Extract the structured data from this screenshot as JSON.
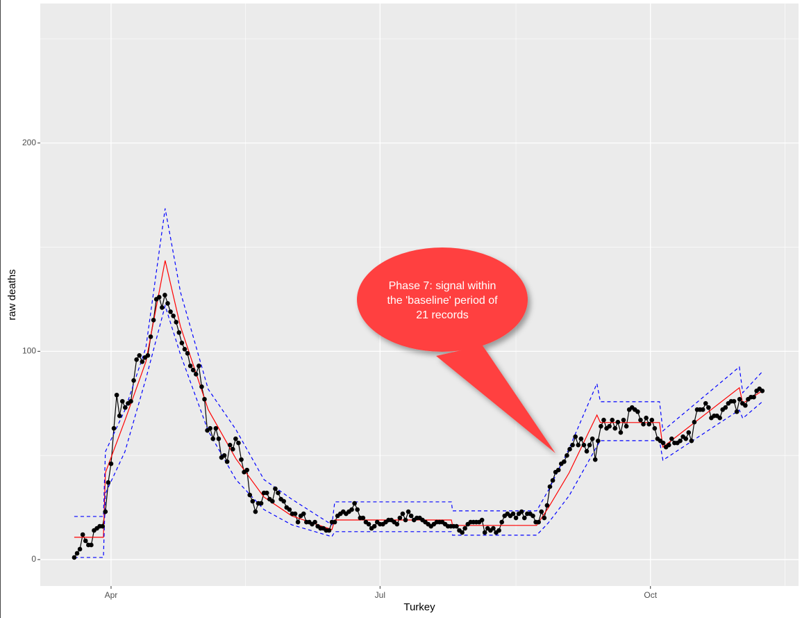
{
  "chart_data": {
    "type": "line",
    "x_label": "Turkey",
    "y_label": "raw deaths",
    "xlim": [
      -25.0,
      242.8
    ],
    "ylim": [
      -12.7,
      267
    ],
    "xticks": [
      {
        "value": 0,
        "label": "Apr"
      },
      {
        "value": 95,
        "label": "Jul"
      },
      {
        "value": 190.5,
        "label": "Oct"
      }
    ],
    "x_minor_ticks": [
      47.5,
      143,
      238
    ],
    "yticks": [
      0,
      100,
      200
    ],
    "y_minor_ticks": [
      50,
      150,
      250
    ],
    "grid": true,
    "annotation": [
      "Phase 7:  signal within",
      "the 'baseline' period of",
      "21 records"
    ],
    "series": [
      {
        "color": "#000000",
        "style": "points-line",
        "x": [
          -13,
          -12,
          -11,
          -10,
          -9,
          -8,
          -7,
          -6,
          -5,
          -4,
          -3,
          -2,
          -1,
          0,
          1,
          2,
          3,
          4,
          5,
          6,
          7,
          8,
          9,
          10,
          11,
          12,
          13,
          14,
          15,
          16,
          17,
          18,
          19,
          20,
          21,
          22,
          23,
          24,
          25,
          26,
          27,
          28,
          29,
          30,
          31,
          32,
          33,
          34,
          35,
          36,
          37,
          38,
          39,
          40,
          41,
          42,
          43,
          44,
          45,
          46,
          47,
          48,
          49,
          50,
          51,
          52,
          53,
          54,
          55,
          56,
          57,
          58,
          59,
          60,
          61,
          62,
          63,
          64,
          65,
          66,
          67,
          68,
          69,
          70,
          71,
          72,
          73,
          74,
          75,
          76,
          77,
          78,
          79,
          80,
          81,
          82,
          83,
          84,
          85,
          86,
          87,
          88,
          89,
          90,
          91,
          92,
          93,
          94,
          95,
          96,
          97,
          98,
          99,
          100,
          101,
          102,
          103,
          104,
          105,
          106,
          107,
          108,
          109,
          110,
          111,
          112,
          113,
          114,
          115,
          116,
          117,
          118,
          119,
          120,
          121,
          122,
          123,
          124,
          125,
          126,
          127,
          128,
          129,
          130,
          131,
          132,
          133,
          134,
          135,
          136,
          137,
          138,
          139,
          140,
          141,
          142,
          143,
          144,
          145,
          146,
          147,
          148,
          149,
          150,
          151,
          152,
          153,
          154,
          155,
          156,
          157,
          158,
          159,
          160,
          161,
          162,
          163,
          164,
          165,
          166,
          167,
          168,
          169,
          170,
          171,
          172,
          173,
          174,
          175,
          176,
          177,
          178,
          179,
          180,
          181,
          182,
          183,
          184,
          185,
          186,
          187,
          188,
          189,
          190,
          191,
          192,
          193,
          194,
          195,
          196,
          197,
          198,
          199,
          200,
          201,
          202,
          203,
          204,
          205,
          206,
          207,
          208,
          209,
          210,
          211,
          212,
          213,
          214,
          215,
          216,
          217,
          218,
          219,
          220,
          221,
          222,
          223,
          224,
          225,
          226,
          227,
          228,
          229,
          230
        ],
        "values": [
          1,
          3,
          5,
          12,
          9,
          7,
          7,
          14,
          15,
          16,
          16,
          23,
          37,
          46,
          63,
          79,
          69,
          76,
          73,
          75,
          76,
          86,
          96,
          98,
          95,
          97,
          98,
          107,
          115,
          125,
          126,
          121,
          127,
          123,
          119,
          117,
          114,
          109,
          104,
          101,
          99,
          93,
          91,
          89,
          93,
          83,
          77,
          62,
          63,
          58,
          63,
          58,
          49,
          50,
          47,
          55,
          53,
          58,
          56,
          48,
          42,
          43,
          31,
          28,
          23,
          27,
          27,
          32,
          32,
          29,
          28,
          34,
          32,
          29,
          28,
          25,
          24,
          22,
          22,
          18,
          21,
          22,
          18,
          18,
          17,
          18,
          16,
          15,
          15,
          14,
          14,
          18,
          18,
          21,
          22,
          23,
          22,
          23,
          24,
          27,
          24,
          20,
          20,
          18,
          17,
          15,
          16,
          18,
          17,
          17,
          18,
          19,
          19,
          18,
          17,
          20,
          22,
          19,
          23,
          21,
          19,
          20,
          20,
          19,
          18,
          17,
          16,
          17,
          18,
          18,
          18,
          17,
          16,
          16,
          16,
          16,
          14,
          13,
          15,
          17,
          18,
          18,
          18,
          18,
          19,
          13,
          15,
          14,
          15,
          13,
          14,
          18,
          21,
          22,
          21,
          22,
          20,
          22,
          23,
          20,
          22,
          22,
          21,
          18,
          18,
          23,
          20,
          26,
          35,
          38,
          42,
          43,
          46,
          47,
          50,
          53,
          55,
          59,
          55,
          58,
          55,
          52,
          55,
          58,
          48,
          57,
          64,
          67,
          63,
          64,
          67,
          63,
          66,
          61,
          67,
          64,
          72,
          73,
          72,
          71,
          67,
          65,
          68,
          65,
          67,
          63,
          58,
          57,
          56,
          54,
          55,
          58,
          56,
          56,
          57,
          59,
          58,
          61,
          57,
          66,
          72,
          72,
          72,
          75,
          73,
          68,
          69,
          69,
          68,
          72,
          73,
          75,
          76,
          76,
          71,
          77,
          75,
          74,
          77,
          78,
          78,
          81,
          82,
          81
        ]
      },
      {
        "color": "#ff0000",
        "style": "line",
        "x": [
          -13,
          -2.7,
          -2.0,
          4.9,
          12.3,
          19.1,
          24.5,
          34.3,
          44.1,
          54.0,
          63.8,
          78.0,
          79.0,
          120.2,
          120.6,
          150.3,
          154.5,
          161.8,
          171.6,
          172.8,
          193.7,
          194.9,
          221.9,
          223.1,
          230.0
        ],
        "values": [
          10.7,
          10.7,
          41.7,
          66.8,
          95,
          143.6,
          112,
          72,
          48.4,
          30,
          21,
          14.4,
          19,
          19,
          16.4,
          16.4,
          25,
          41.7,
          69.4,
          65.8,
          65.8,
          54,
          82.5,
          75,
          81
        ]
      },
      {
        "color": "#0000ff",
        "style": "dashed",
        "x": [
          -13,
          -2.7,
          -2.0,
          4.9,
          12.3,
          19.1,
          24.5,
          34.3,
          44.1,
          54.0,
          63.8,
          78.0,
          79.0,
          120.2,
          120.6,
          150.3,
          154.5,
          161.8,
          171.6,
          172.8,
          193.7,
          194.9,
          221.9,
          223.1,
          230.0
        ],
        "values": [
          20.7,
          20.7,
          51.8,
          71.8,
          101.8,
          168.6,
          128.5,
          81.8,
          62.4,
          38.4,
          29,
          16.7,
          27.7,
          27.7,
          23.4,
          23.4,
          33.4,
          53.4,
          84.5,
          75.8,
          75.8,
          61.8,
          92.5,
          80.1,
          90.2
        ]
      },
      {
        "color": "#0000ff",
        "style": "dashed",
        "x": [
          -13,
          -2.7,
          -2.0,
          4.9,
          12.3,
          19.1,
          24.5,
          34.3,
          44.1,
          54.0,
          63.8,
          78.0,
          79.0,
          120.2,
          120.6,
          150.3,
          154.5,
          161.8,
          171.6,
          172.8,
          193.7,
          194.9,
          221.9,
          223.1,
          230.0
        ],
        "values": [
          1,
          1,
          31.7,
          51.8,
          86.8,
          121.9,
          98.5,
          61.8,
          38.4,
          24,
          16.7,
          11,
          13.4,
          13.4,
          11.7,
          11.7,
          17.7,
          30.7,
          54.4,
          57.1,
          57.1,
          47.7,
          71.8,
          67.8,
          75.8
        ]
      }
    ]
  }
}
